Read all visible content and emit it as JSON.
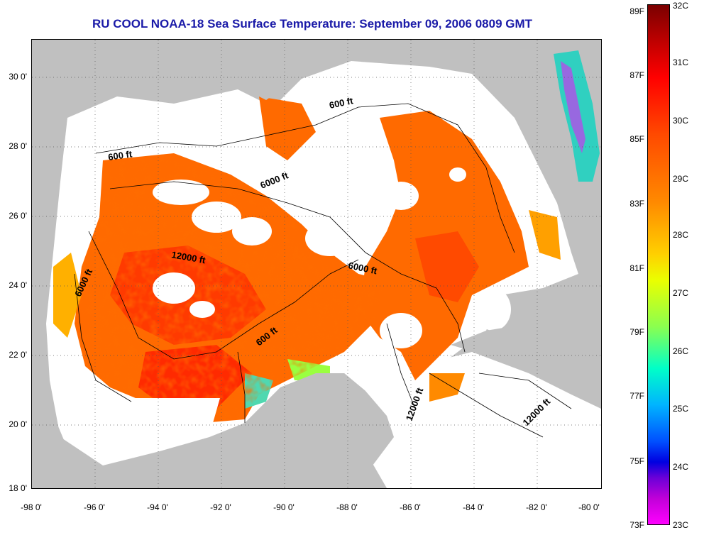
{
  "title": "RU COOL  NOAA-18  Sea Surface Temperature:  September 09, 2006 0809 GMT",
  "x_ticks": [
    "-98 0'",
    "-96 0'",
    "-94 0'",
    "-92 0'",
    "-90 0'",
    "-88 0'",
    "-86 0'",
    "-84 0'",
    "-82 0'",
    "-80 0'"
  ],
  "y_ticks": [
    "30 0'",
    "28 0'",
    "26 0'",
    "24 0'",
    "22 0'",
    "20 0'",
    "18 0'"
  ],
  "colorbar": {
    "fahrenheit": [
      "89F",
      "87F",
      "85F",
      "83F",
      "81F",
      "79F",
      "77F",
      "75F",
      "73F"
    ],
    "celsius": [
      "32C",
      "31C",
      "30C",
      "29C",
      "28C",
      "27C",
      "26C",
      "25C",
      "24C",
      "23C"
    ]
  },
  "contour_labels": [
    "600 ft",
    "600 ft",
    "6000 ft",
    "12000 ft",
    "6000 ft",
    "6000 ft",
    "600 ft",
    "12000 ft",
    "12000 ft"
  ],
  "colors": {
    "title": "#1a1aa8",
    "land": "#c0c0c0",
    "cloud": "#ffffff",
    "warm": "#ff6a00",
    "hot": "#ff3a00"
  }
}
